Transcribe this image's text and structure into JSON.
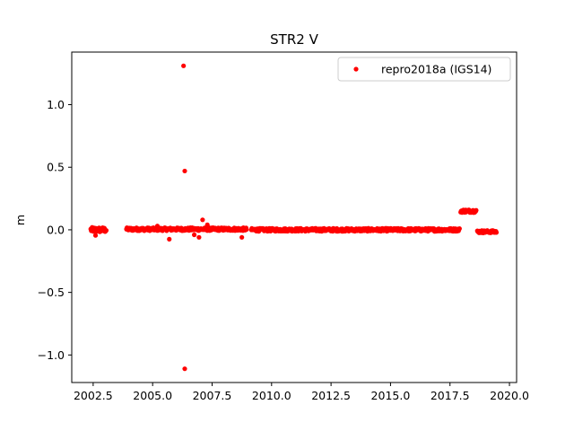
{
  "chart_data": {
    "type": "scatter",
    "title": "STR2 V",
    "xlabel": "",
    "ylabel": "m",
    "xlim": [
      2001.6,
      2020.3
    ],
    "ylim": [
      -1.22,
      1.42
    ],
    "xticks": [
      2002.5,
      2005.0,
      2007.5,
      2010.0,
      2012.5,
      2015.0,
      2017.5,
      2020.0
    ],
    "xtick_labels": [
      "2002.5",
      "2005.0",
      "2007.5",
      "2010.0",
      "2012.5",
      "2015.0",
      "2017.5",
      "2020.0"
    ],
    "yticks": [
      -1.0,
      -0.5,
      0.0,
      0.5,
      1.0
    ],
    "ytick_labels": [
      "−1.0",
      "−0.5",
      "0.0",
      "0.5",
      "1.0"
    ],
    "grid": false,
    "legend_position": "top-right",
    "series": [
      {
        "name": "repro2018a (IGS14)",
        "color": "#ff0000",
        "marker": "circle",
        "segments": [
          {
            "x_start": 2002.4,
            "x_end": 2003.05,
            "y": 0.0,
            "jitter": 0.02
          },
          {
            "x_start": 2003.9,
            "x_end": 2008.95,
            "y": 0.005,
            "jitter": 0.012
          },
          {
            "x_start": 2009.15,
            "x_end": 2017.9,
            "y": 0.0,
            "jitter": 0.012
          },
          {
            "x_start": 2017.95,
            "x_end": 2018.6,
            "y": 0.15,
            "jitter": 0.012
          },
          {
            "x_start": 2018.65,
            "x_end": 2019.45,
            "y": -0.015,
            "jitter": 0.01
          }
        ],
        "points": [
          {
            "x": 2006.3,
            "y": 1.31
          },
          {
            "x": 2006.35,
            "y": 0.47
          },
          {
            "x": 2006.35,
            "y": -1.11
          },
          {
            "x": 2007.1,
            "y": 0.08
          },
          {
            "x": 2005.7,
            "y": -0.075
          },
          {
            "x": 2006.75,
            "y": -0.04
          },
          {
            "x": 2006.95,
            "y": -0.06
          },
          {
            "x": 2008.75,
            "y": -0.06
          },
          {
            "x": 2007.3,
            "y": 0.04
          },
          {
            "x": 2002.6,
            "y": -0.045
          },
          {
            "x": 2005.2,
            "y": 0.03
          }
        ]
      }
    ]
  }
}
